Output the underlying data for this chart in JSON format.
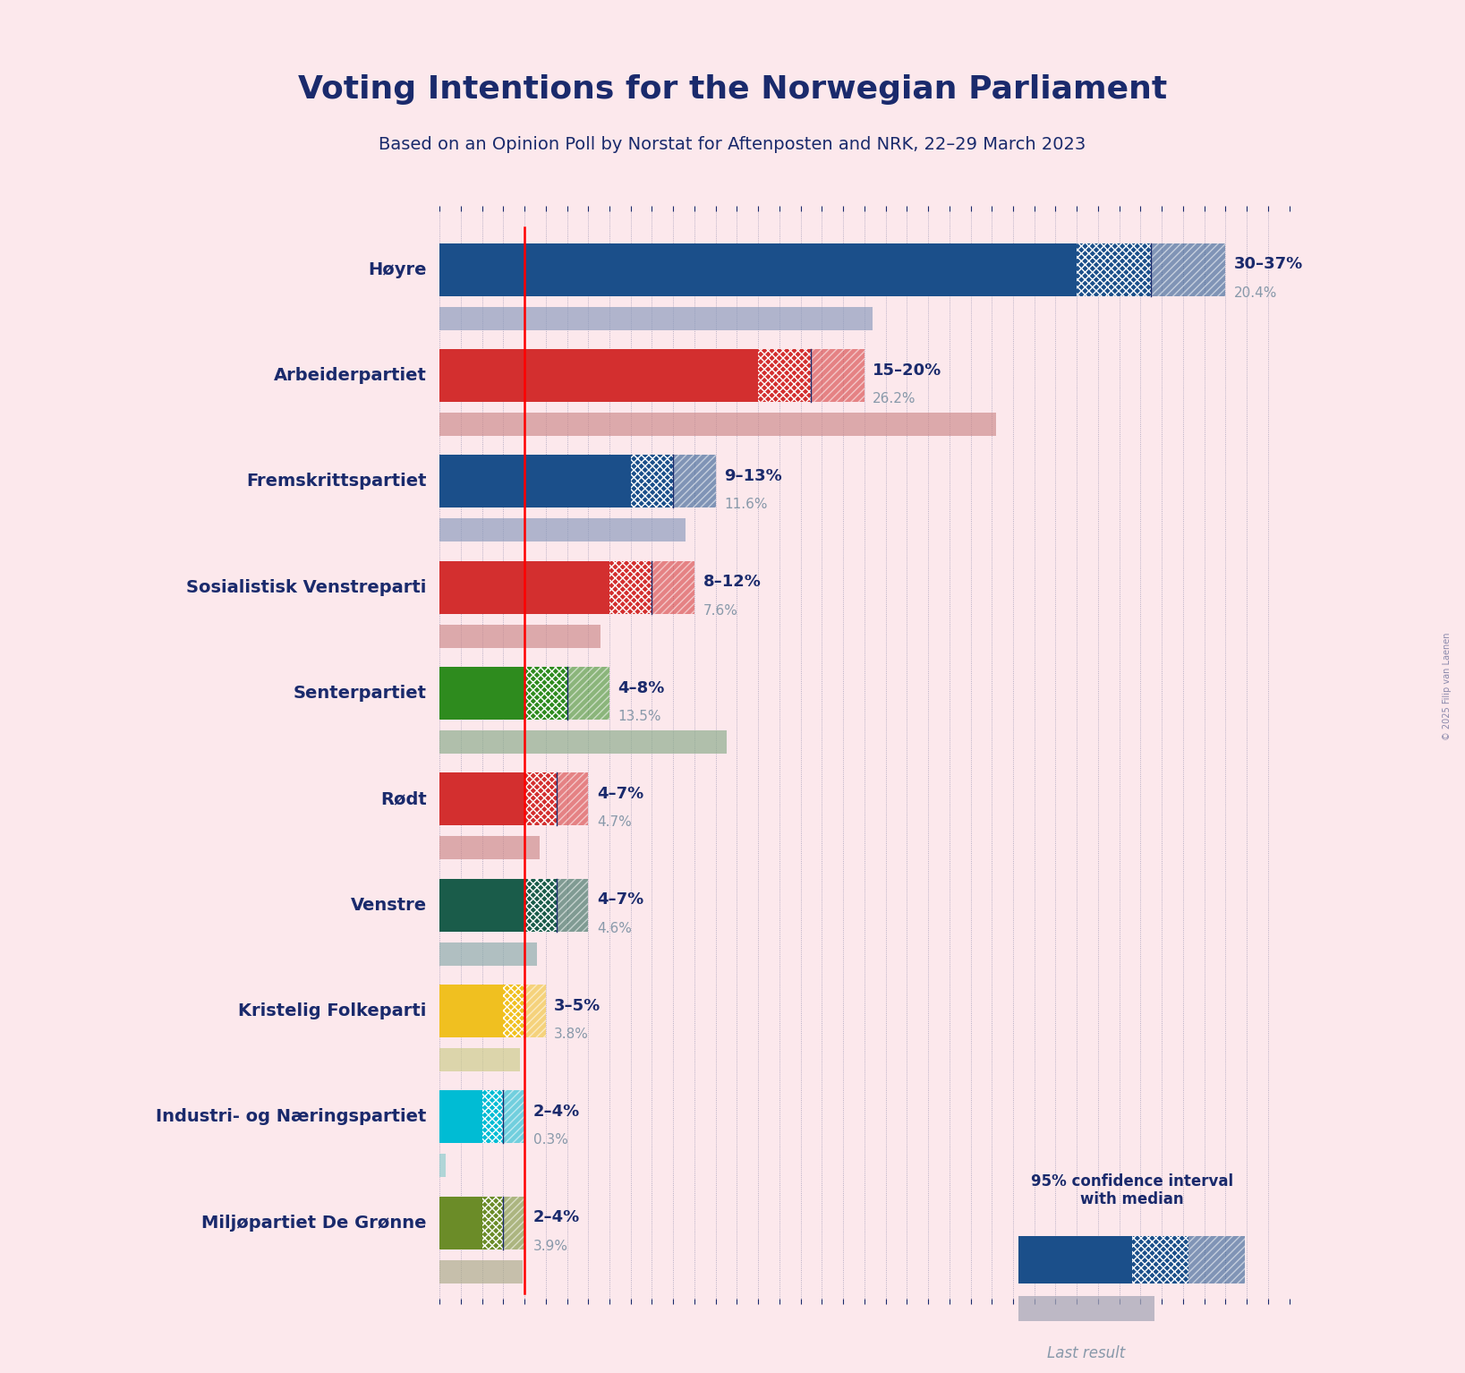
{
  "title": "Voting Intentions for the Norwegian Parliament",
  "subtitle": "Based on an Opinion Poll by Norstat for Aftenposten and NRK, 22–29 March 2023",
  "background_color": "#fce8ec",
  "title_color": "#1a2a6c",
  "parties": [
    "Høyre",
    "Arbeiderpartiet",
    "Fremskrittspartiet",
    "Sosialistisk Venstreparti",
    "Senterpartiet",
    "Rødt",
    "Venstre",
    "Kristelig Folkeparti",
    "Industri- og Næringspartiet",
    "Miljøpartiet De Grønne"
  ],
  "ci_low": [
    30,
    15,
    9,
    8,
    4,
    4,
    4,
    3,
    2,
    2
  ],
  "ci_high": [
    37,
    20,
    13,
    12,
    8,
    7,
    7,
    5,
    4,
    4
  ],
  "median": [
    33.5,
    17.5,
    11,
    10,
    6,
    5.5,
    5.5,
    4,
    3,
    3
  ],
  "last_result": [
    20.4,
    26.2,
    11.6,
    7.6,
    13.5,
    4.7,
    4.6,
    3.8,
    0.3,
    3.9
  ],
  "label_ranges": [
    "30–37%",
    "15–20%",
    "9–13%",
    "8–12%",
    "4–8%",
    "4–7%",
    "4–7%",
    "3–5%",
    "2–4%",
    "2–4%"
  ],
  "label_last": [
    "20.4%",
    "26.2%",
    "11.6%",
    "7.6%",
    "13.5%",
    "4.7%",
    "4.6%",
    "3.8%",
    "0.3%",
    "3.9%"
  ],
  "colors": [
    "#1b4f8a",
    "#d32f2f",
    "#1b4f8a",
    "#d32f2f",
    "#2e8b1e",
    "#d32f2f",
    "#1a5c4a",
    "#f0c020",
    "#00bcd4",
    "#6b8c28"
  ],
  "last_result_colors": [
    "#8899bb",
    "#cc8888",
    "#8899bb",
    "#cc8888",
    "#88aa88",
    "#cc8888",
    "#88aaaa",
    "#cccc88",
    "#88cccc",
    "#aaaa88"
  ],
  "last_result_gray": "#a8a8b8",
  "red_line_x": 4.0,
  "median_line_color": "#1a2a6c",
  "xlim": [
    0,
    40
  ],
  "figsize": [
    16.37,
    15.34
  ],
  "dpi": 100,
  "copyright": "© 2025 Filip van Laenen"
}
